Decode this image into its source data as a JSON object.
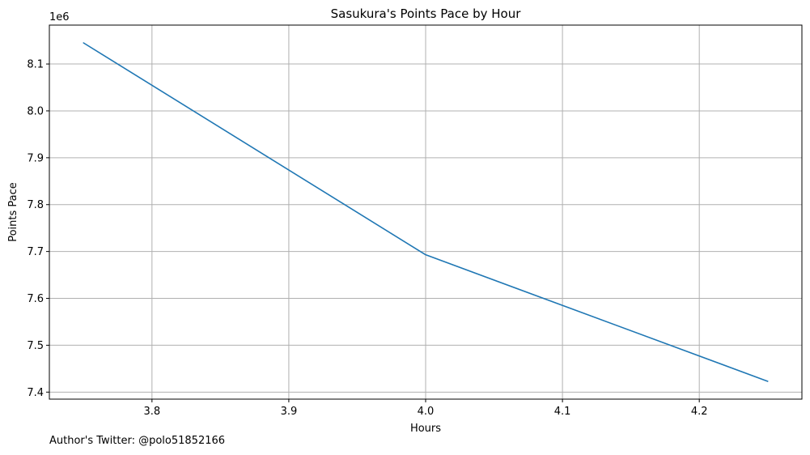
{
  "chart_data": {
    "type": "line",
    "title": "Sasukura's Points Pace by Hour",
    "xlabel": "Hours",
    "ylabel": "Points Pace",
    "y_offset_label": "1e6",
    "x": [
      3.75,
      4.0,
      4.25
    ],
    "series": [
      {
        "values": [
          8145000,
          7693000,
          7423000
        ],
        "color": "#1f77b4"
      }
    ],
    "xlim": [
      3.725,
      4.275
    ],
    "ylim": [
      7.385,
      8.183
    ],
    "xticks": [
      3.8,
      3.9,
      4.0,
      4.1,
      4.2
    ],
    "xtick_labels": [
      "3.8",
      "3.9",
      "4.0",
      "4.1",
      "4.2"
    ],
    "yticks": [
      7.4,
      7.5,
      7.6,
      7.7,
      7.8,
      7.9,
      8.0,
      8.1
    ],
    "ytick_labels": [
      "7.4",
      "7.5",
      "7.6",
      "7.7",
      "7.8",
      "7.9",
      "8.0",
      "8.1"
    ],
    "grid": true,
    "grid_color": "#b0b0b0"
  },
  "footer": {
    "credit": "Author's Twitter: @polo51852166"
  }
}
